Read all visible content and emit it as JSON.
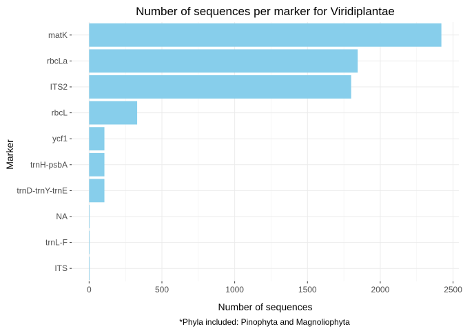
{
  "chart_data": {
    "type": "bar",
    "orientation": "horizontal",
    "title": "Number of sequences per marker for Viridiplantae",
    "xlabel": "Number of sequences",
    "ylabel": "Marker",
    "caption": "*Phyla included: Pinophyta and Magnoliophyta",
    "categories": [
      "matK",
      "rbcLa",
      "ITS2",
      "rbcL",
      "ycf1",
      "trnH-psbA",
      "trnD-trnY-trnE",
      "NA",
      "trnL-F",
      "ITS"
    ],
    "values": [
      2420,
      1845,
      1800,
      330,
      105,
      105,
      105,
      3,
      3,
      2
    ],
    "xlim": [
      -120,
      2540
    ],
    "xticks": [
      0,
      500,
      1000,
      1500,
      2000,
      2500
    ],
    "grid": true,
    "bar_color": "#87ceeb",
    "legend": "none"
  }
}
